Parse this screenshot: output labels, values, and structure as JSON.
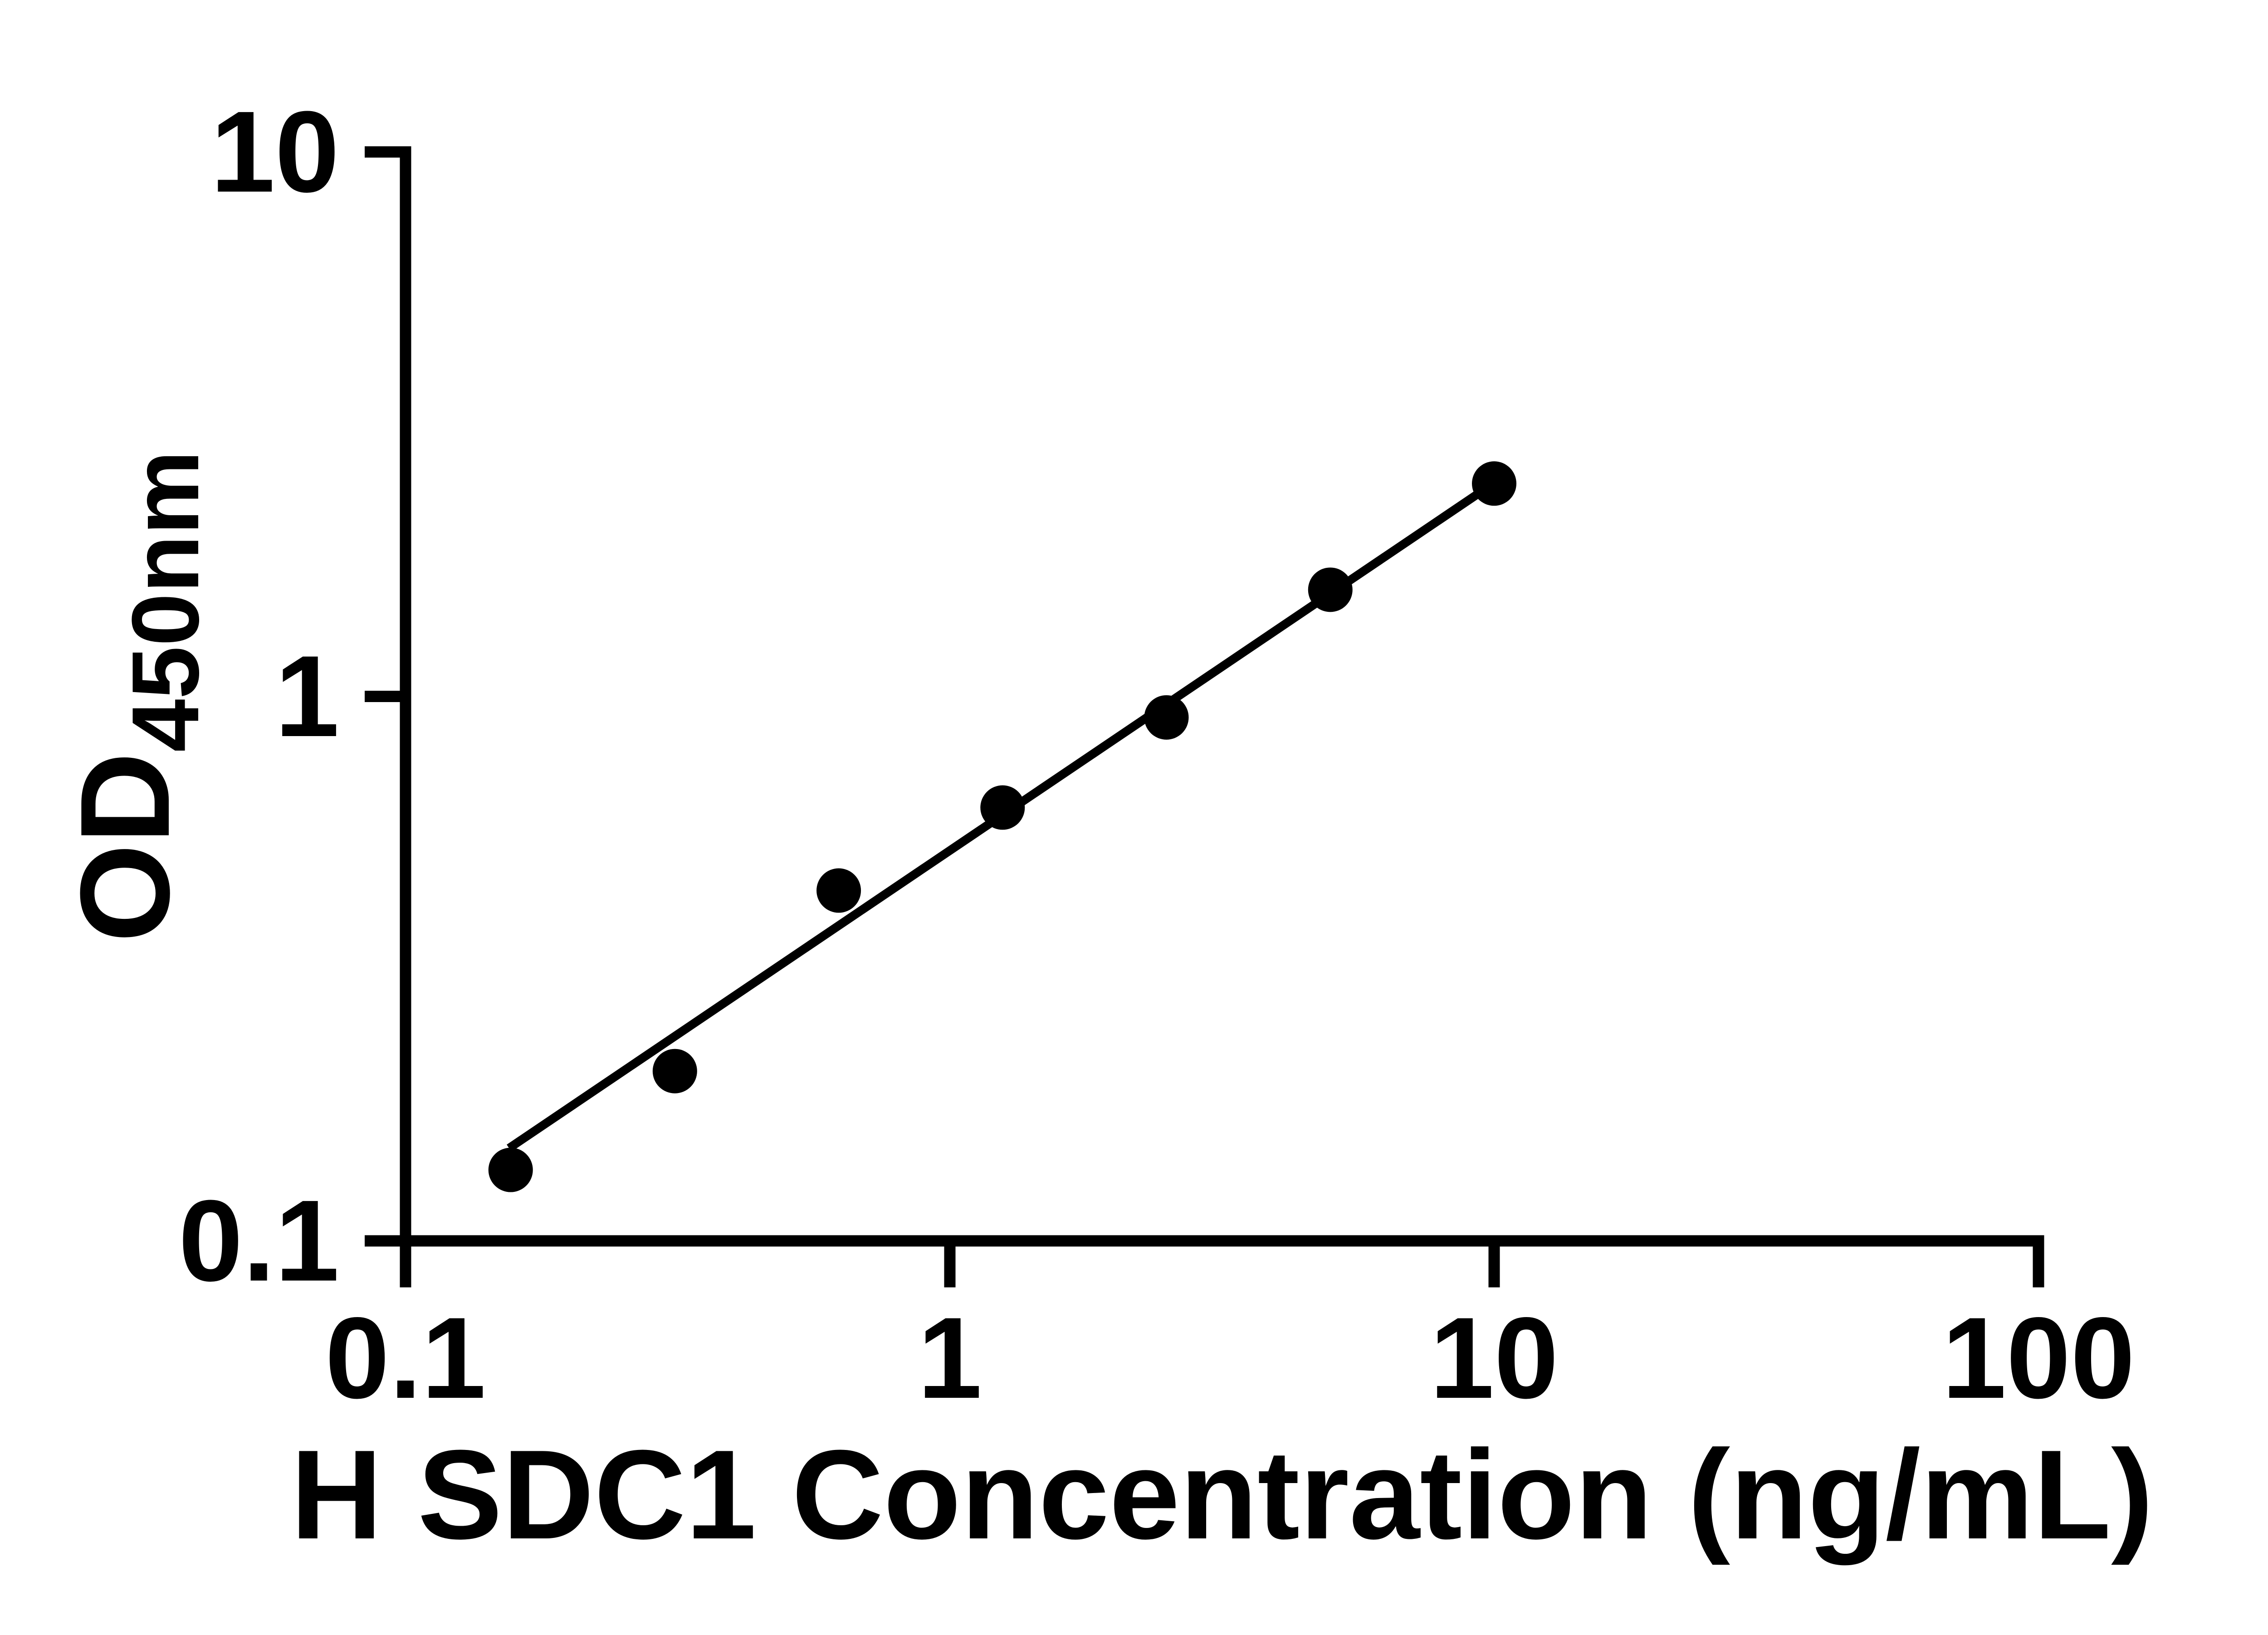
{
  "figure": {
    "background": "#ffffff",
    "foreground": "#000000"
  },
  "chart_data": {
    "type": "scatter",
    "title": "",
    "xlabel": "H SDC1 Concentration (ng/mL)",
    "ylabel_main": "OD",
    "ylabel_sub": "450nm",
    "x_scale": "log",
    "y_scale": "log",
    "xlim": [
      0.1,
      100
    ],
    "ylim": [
      0.1,
      10
    ],
    "x_ticks": [
      {
        "value": 0.1,
        "label": "0.1"
      },
      {
        "value": 1,
        "label": "1"
      },
      {
        "value": 10,
        "label": "10"
      },
      {
        "value": 100,
        "label": "100"
      }
    ],
    "y_ticks": [
      {
        "value": 0.1,
        "label": "0.1"
      },
      {
        "value": 1,
        "label": "1"
      },
      {
        "value": 10,
        "label": "10"
      }
    ],
    "grid": false,
    "legend": null,
    "marker_color": "#000000",
    "line_color": "#000000",
    "points": [
      {
        "x": 0.156,
        "y": 0.135
      },
      {
        "x": 0.3125,
        "y": 0.205
      },
      {
        "x": 0.625,
        "y": 0.44
      },
      {
        "x": 1.25,
        "y": 0.625
      },
      {
        "x": 2.5,
        "y": 0.915
      },
      {
        "x": 5,
        "y": 1.57
      },
      {
        "x": 10,
        "y": 2.46
      }
    ],
    "trendline": {
      "x1": 0.155,
      "y1": 0.148,
      "x2": 9.9,
      "y2": 2.45
    }
  }
}
